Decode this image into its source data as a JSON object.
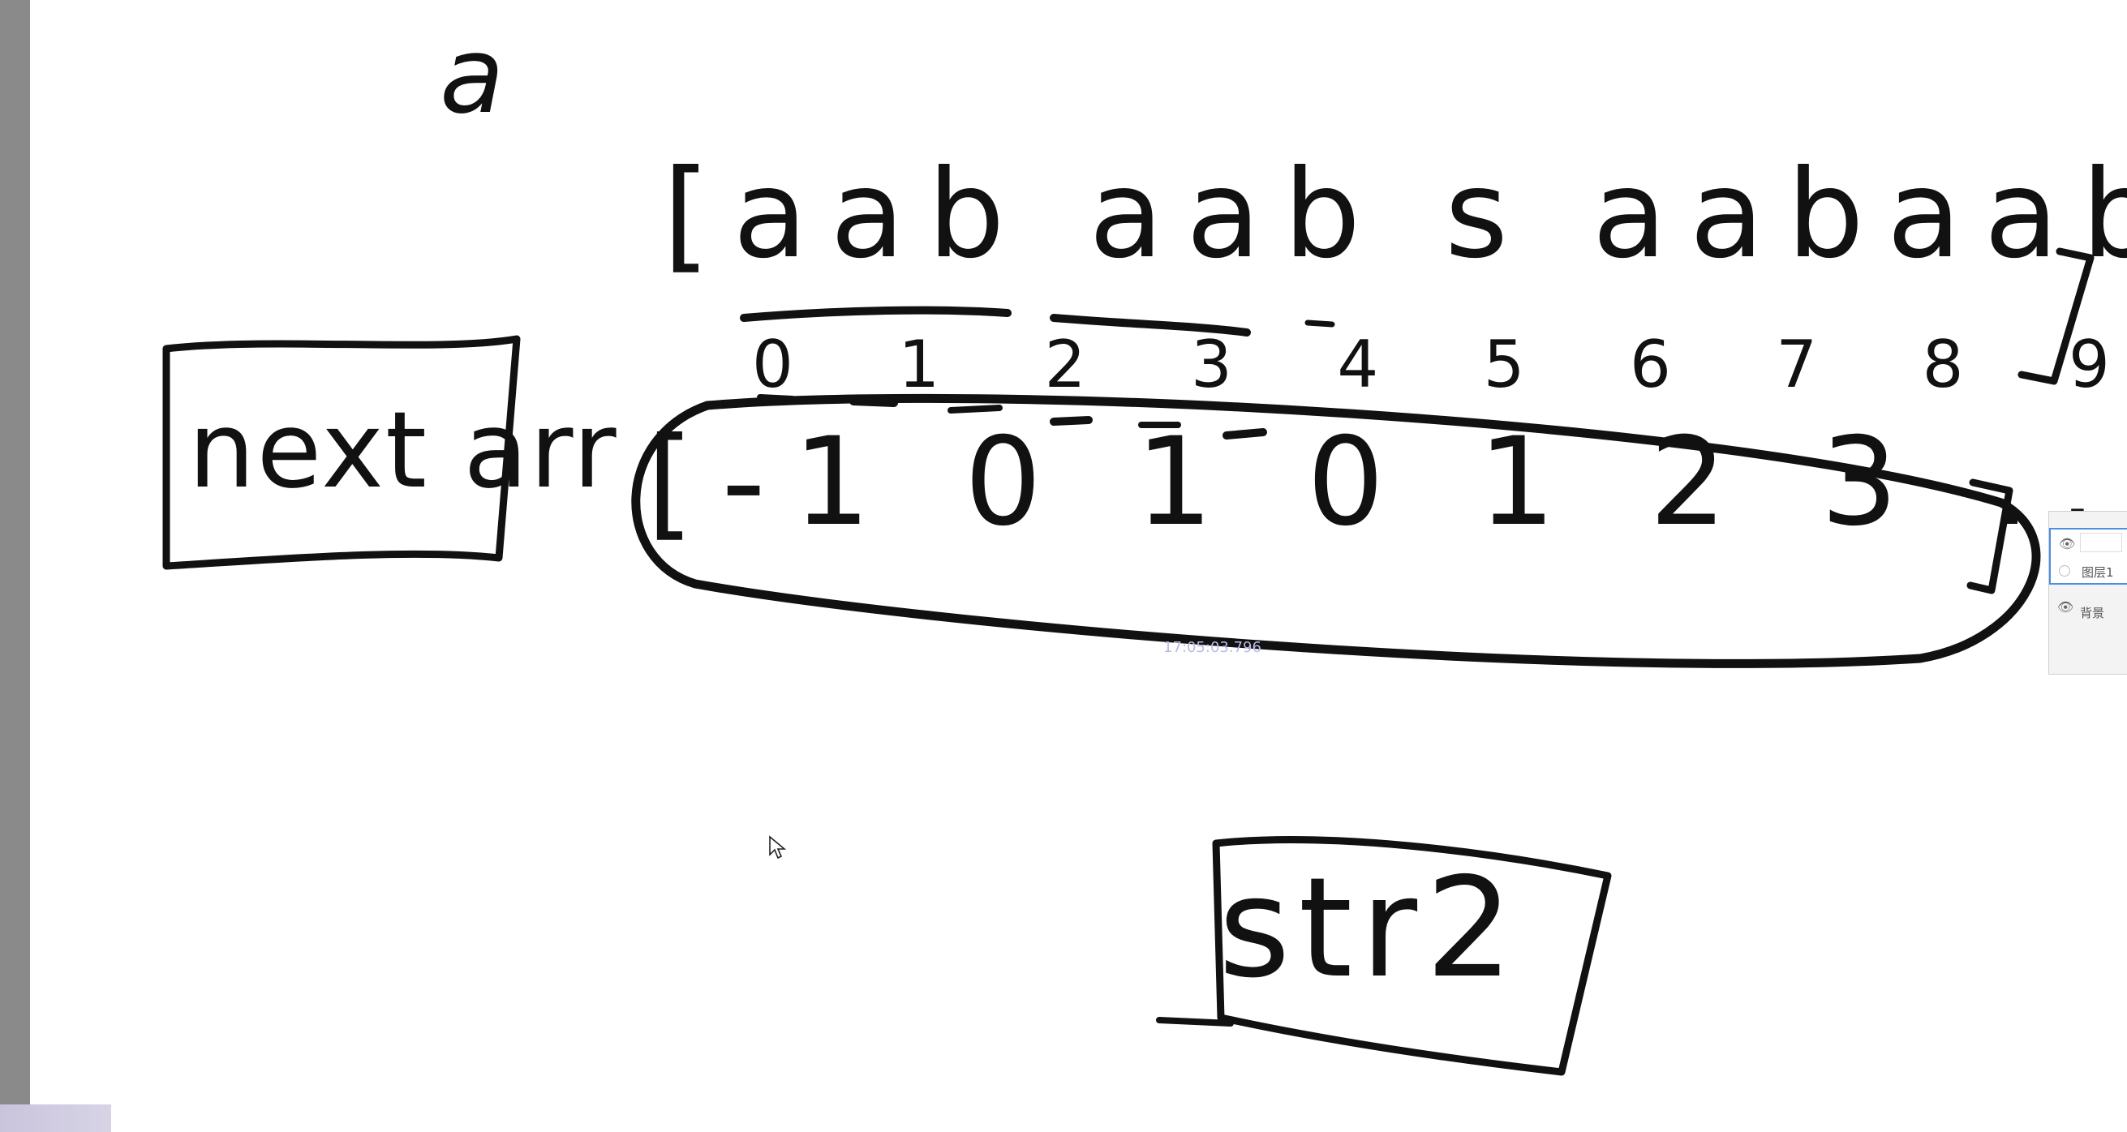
{
  "canvas": {
    "letter_a": "a",
    "array_text": "[aab aab s aabaabst]",
    "index_row": "0 1 2 3 4 5 6 7 8 9",
    "next_values": "[-1 0 1 0 1 2 3 ....",
    "nextarr_label": "next arr",
    "str2_label": "str2",
    "faint_watermark": "17:05:03.796"
  },
  "layers_panel": {
    "items": [
      {
        "label": "图层1",
        "visible_icon": "eye-icon"
      },
      {
        "label": "背景",
        "visible_icon": "eye-icon"
      }
    ]
  },
  "colors": {
    "ink": "#111111",
    "background": "#ffffff",
    "margin": "#8a8a8a",
    "accent": "#4c8fe0"
  }
}
